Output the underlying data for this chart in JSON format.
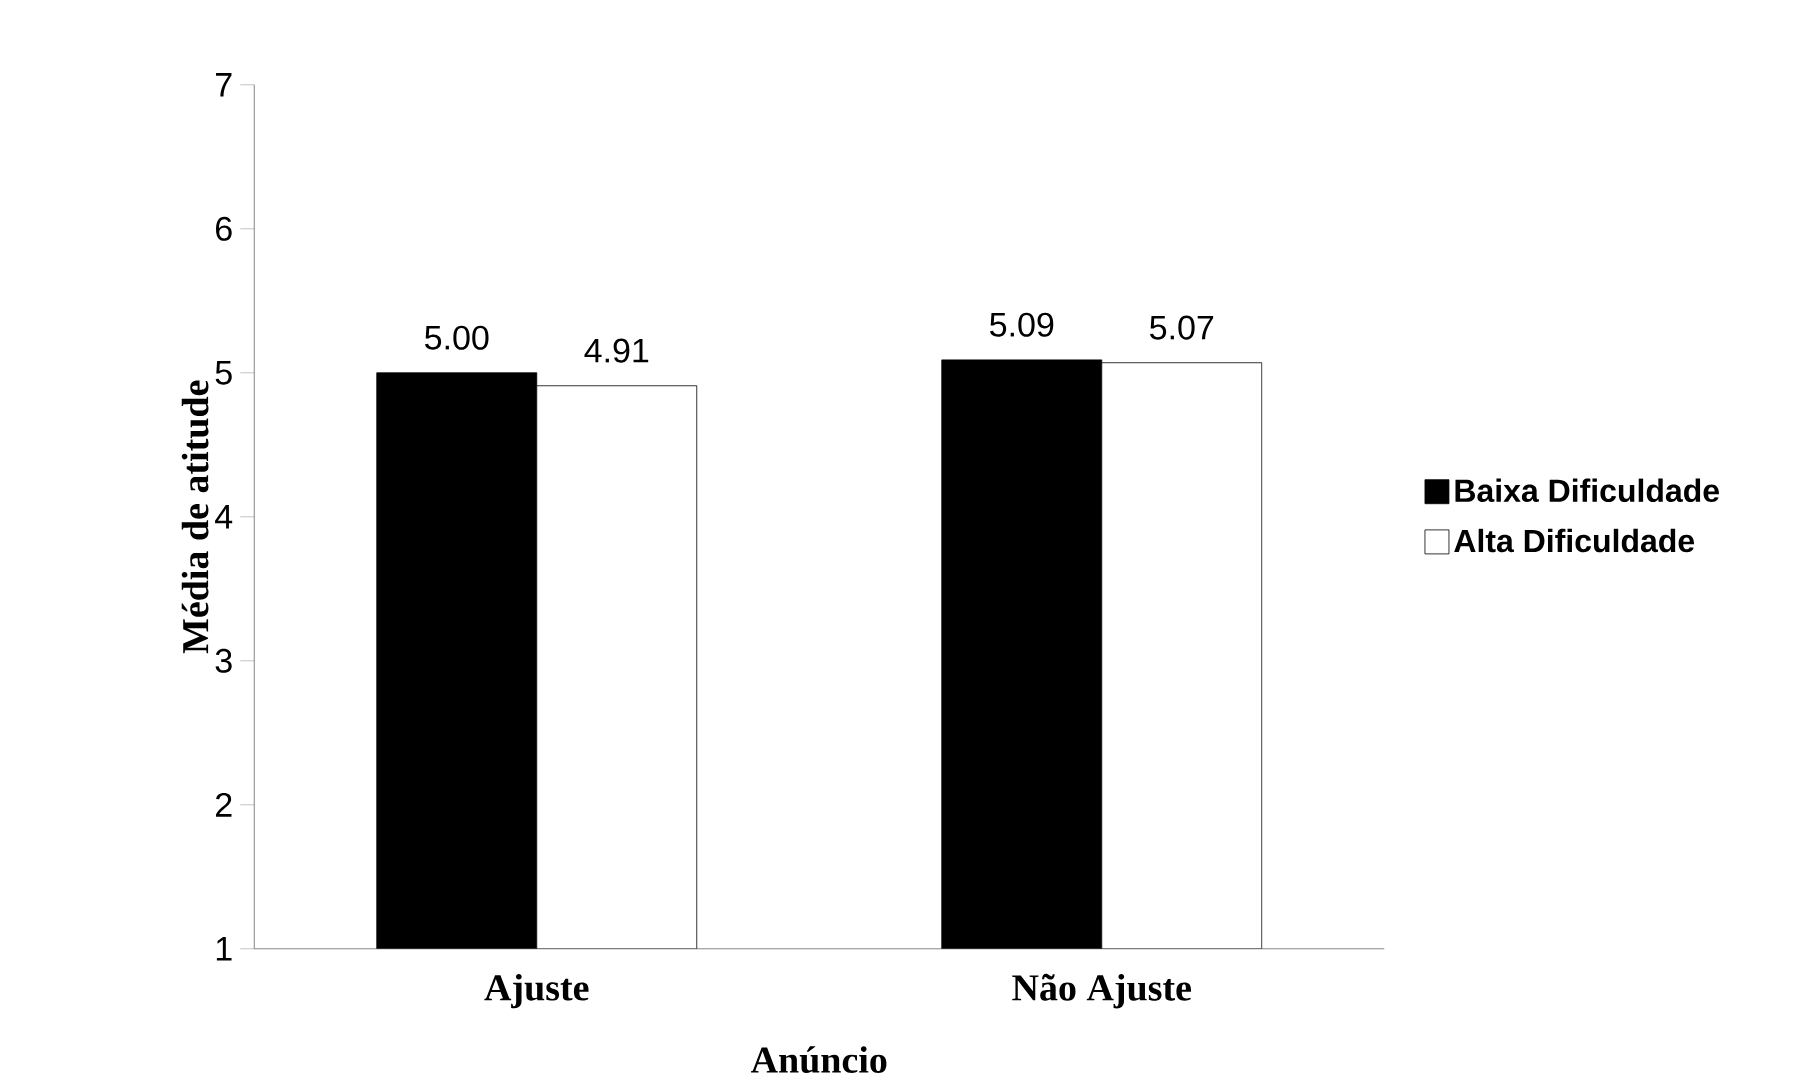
{
  "chart_data": {
    "type": "bar",
    "xlabel": "Anúncio",
    "ylabel": "Média de atitude",
    "categories": [
      "Ajuste",
      "Não Ajuste"
    ],
    "series": [
      {
        "name": "Baixa Dificuldade",
        "color": "#000000",
        "values": [
          5.0,
          5.09
        ],
        "value_labels": [
          "5.00",
          "5.09"
        ]
      },
      {
        "name": "Alta Dificuldade",
        "color": "#ffffff",
        "values": [
          4.91,
          5.07
        ],
        "value_labels": [
          "4.91",
          "5.07"
        ]
      }
    ],
    "ylim": [
      1,
      7
    ],
    "yticks": [
      1,
      2,
      3,
      4,
      5,
      6,
      7
    ],
    "grid": false,
    "legend": "right"
  }
}
